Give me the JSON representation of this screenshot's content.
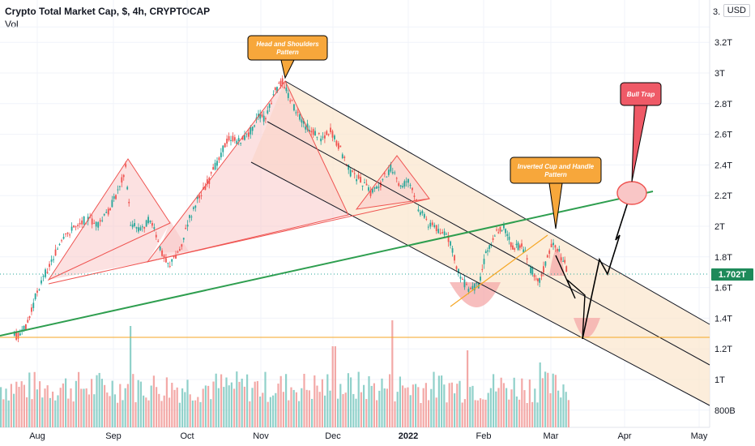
{
  "header": {
    "title": "Crypto Total Market Cap, $, 4h, CRYPTOCAP",
    "sub": "Vol",
    "currency_badge": "USD"
  },
  "chart_data": {
    "type": "line",
    "symbol": "CRYPTOCAP:TOTAL",
    "timeframe": "4h",
    "y_unit": "USD",
    "ylim": [
      "800B",
      "3.3T"
    ],
    "y_ticks": [
      "3.",
      "3.2T",
      "3T",
      "2.8T",
      "2.6T",
      "2.4T",
      "2.2T",
      "2T",
      "1.8T",
      "1.6T",
      "1.4T",
      "1.2T",
      "1T",
      "800B"
    ],
    "x_ticks": [
      "Aug",
      "Sep",
      "Oct",
      "Nov",
      "Dec",
      "2022",
      "Feb",
      "Mar",
      "Apr",
      "May"
    ],
    "last_price_label": "1.702T",
    "last_price": 1.702,
    "series": [
      {
        "kind": "price",
        "x": [
          "Jul 22",
          "Jul 25",
          "Jul 28",
          "Aug 1",
          "Aug 5",
          "Aug 9",
          "Aug 13",
          "Aug 17",
          "Aug 21",
          "Aug 25",
          "Aug 29",
          "Sep 2",
          "Sep 6",
          "Sep 8",
          "Sep 12",
          "Sep 16",
          "Sep 20",
          "Sep 24",
          "Sep 28",
          "Oct 2",
          "Oct 6",
          "Oct 10",
          "Oct 14",
          "Oct 18",
          "Oct 22",
          "Oct 26",
          "Oct 30",
          "Nov 3",
          "Nov 7",
          "Nov 10",
          "Nov 14",
          "Nov 18",
          "Nov 22",
          "Nov 26",
          "Nov 30",
          "Dec 4",
          "Dec 8",
          "Dec 12",
          "Dec 16",
          "Dec 20",
          "Dec 24",
          "Dec 28",
          "Jan 1",
          "Jan 5",
          "Jan 9",
          "Jan 13",
          "Jan 17",
          "Jan 21",
          "Jan 25",
          "Jan 29",
          "Feb 2",
          "Feb 6",
          "Feb 10",
          "Feb 14",
          "Feb 18",
          "Feb 22",
          "Feb 26",
          "Mar 2",
          "Mar 6",
          "Mar 8"
        ],
        "y": [
          1.28,
          1.3,
          1.4,
          1.58,
          1.72,
          1.85,
          1.95,
          2.02,
          2.05,
          2.0,
          2.1,
          2.2,
          2.38,
          2.02,
          1.98,
          2.05,
          1.85,
          1.75,
          1.85,
          2.05,
          2.2,
          2.3,
          2.45,
          2.58,
          2.55,
          2.6,
          2.72,
          2.7,
          2.88,
          2.95,
          2.8,
          2.68,
          2.62,
          2.58,
          2.62,
          2.5,
          2.35,
          2.3,
          2.22,
          2.28,
          2.38,
          2.25,
          2.3,
          2.12,
          2.02,
          1.98,
          1.92,
          1.7,
          1.58,
          1.62,
          1.82,
          1.95,
          2.0,
          1.85,
          1.88,
          1.72,
          1.65,
          1.9,
          1.78,
          1.7
        ]
      }
    ],
    "annotations": [
      {
        "label": "Head and Shoulders\nPattern",
        "kind": "callout"
      },
      {
        "label": "Inverted Cup and Handle\nPattern",
        "kind": "callout"
      },
      {
        "label": "Bull Trap",
        "kind": "callout"
      }
    ],
    "grid": true,
    "colors": {
      "up": "#26a69a",
      "down": "#ef5350",
      "channel": "#131722",
      "channel_fill": "#fbe5cc",
      "support_green": "#2e9e4f",
      "horizontal_orange": "#f5a623",
      "callout_orange": "#f7a73b",
      "callout_red": "#ef5a67",
      "price_label_bg": "#1e8a5a"
    }
  }
}
